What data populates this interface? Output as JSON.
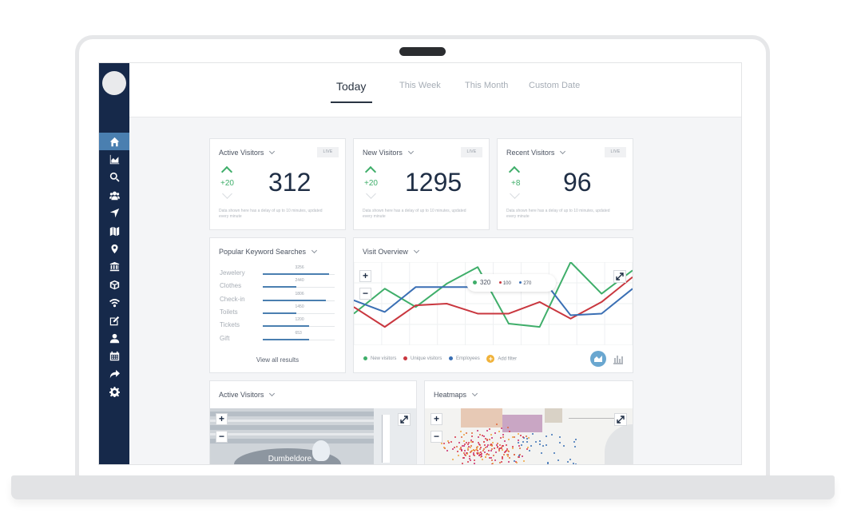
{
  "tabs": [
    {
      "label": "Today",
      "active": true
    },
    {
      "label": "This Week",
      "active": false
    },
    {
      "label": "This Month",
      "active": false
    },
    {
      "label": "Custom Date",
      "active": false
    }
  ],
  "help_icon": "?",
  "sidebar": {
    "items": [
      {
        "icon": "home-icon",
        "active": true
      },
      {
        "icon": "area-chart-icon"
      },
      {
        "icon": "search-icon"
      },
      {
        "icon": "users-icon"
      },
      {
        "icon": "location-arrow-icon"
      },
      {
        "icon": "map-icon"
      },
      {
        "icon": "map-marker-icon"
      },
      {
        "icon": "institution-icon"
      },
      {
        "icon": "cube-icon"
      },
      {
        "icon": "wifi-icon"
      },
      {
        "icon": "edit-icon"
      },
      {
        "icon": "user-icon"
      },
      {
        "icon": "calendar-icon"
      },
      {
        "icon": "share-icon"
      },
      {
        "icon": "gear-icon"
      }
    ]
  },
  "stats": [
    {
      "title": "Active Visitors",
      "badge": "LIVE",
      "delta": "+20",
      "value": "312",
      "note": "Data shown here has a delay of up to 10 minutes, updated every minute"
    },
    {
      "title": "New Visitors",
      "badge": "LIVE",
      "delta": "+20",
      "value": "1295",
      "note": "Data shown here has a delay of up to 10 minutes, updated every minute"
    },
    {
      "title": "Recent Visitors",
      "badge": "LIVE",
      "delta": "+8",
      "value": "96",
      "note": "Data shown here has a delay of up to 10 minutes, updated every minute"
    }
  ],
  "keywords": {
    "title": "Popular Keyword Searches",
    "items": [
      {
        "label": "Jewelery",
        "count": "3256",
        "fraction": 0.92
      },
      {
        "label": "Clothes",
        "count": "2440",
        "fraction": 0.47
      },
      {
        "label": "Check-in",
        "count": "1806",
        "fraction": 0.88
      },
      {
        "label": "Toilets",
        "count": "1450",
        "fraction": 0.47
      },
      {
        "label": "Tickets",
        "count": "1200",
        "fraction": 0.64
      },
      {
        "label": "Gift",
        "count": "653",
        "fraction": 0.64
      }
    ],
    "view_all": "View all results"
  },
  "visit_overview": {
    "title": "Visit Overview",
    "tooltip": {
      "new": "320",
      "unique": "100",
      "employees": "270"
    },
    "legend": {
      "new": "New visitors",
      "unique": "Unique visitors",
      "employees": "Employees",
      "add_filter": "Add filter"
    },
    "colors": {
      "new": "#3fae6a",
      "unique": "#c9373f",
      "employees": "#3a6fb4"
    }
  },
  "chart_data": {
    "type": "line",
    "title": "Visit Overview",
    "x": [
      0,
      1,
      2,
      3,
      4,
      5,
      6,
      7,
      8,
      9
    ],
    "ylim": [
      0,
      100
    ],
    "series": [
      {
        "name": "New visitors",
        "values": [
          38,
          68,
          46,
          74,
          94,
          26,
          22,
          100,
          62,
          90
        ]
      },
      {
        "name": "Unique visitors",
        "values": [
          46,
          22,
          48,
          50,
          38,
          38,
          52,
          32,
          52,
          82
        ]
      },
      {
        "name": "Employees",
        "values": [
          54,
          40,
          70,
          70,
          70,
          82,
          84,
          36,
          38,
          68
        ]
      }
    ]
  },
  "active_visitors_map": {
    "title": "Active Visitors",
    "zoom_in": "+",
    "zoom_out": "−",
    "label": "Dumbeldore"
  },
  "heatmaps": {
    "title": "Heatmaps",
    "zoom_in": "+",
    "zoom_out": "−"
  }
}
